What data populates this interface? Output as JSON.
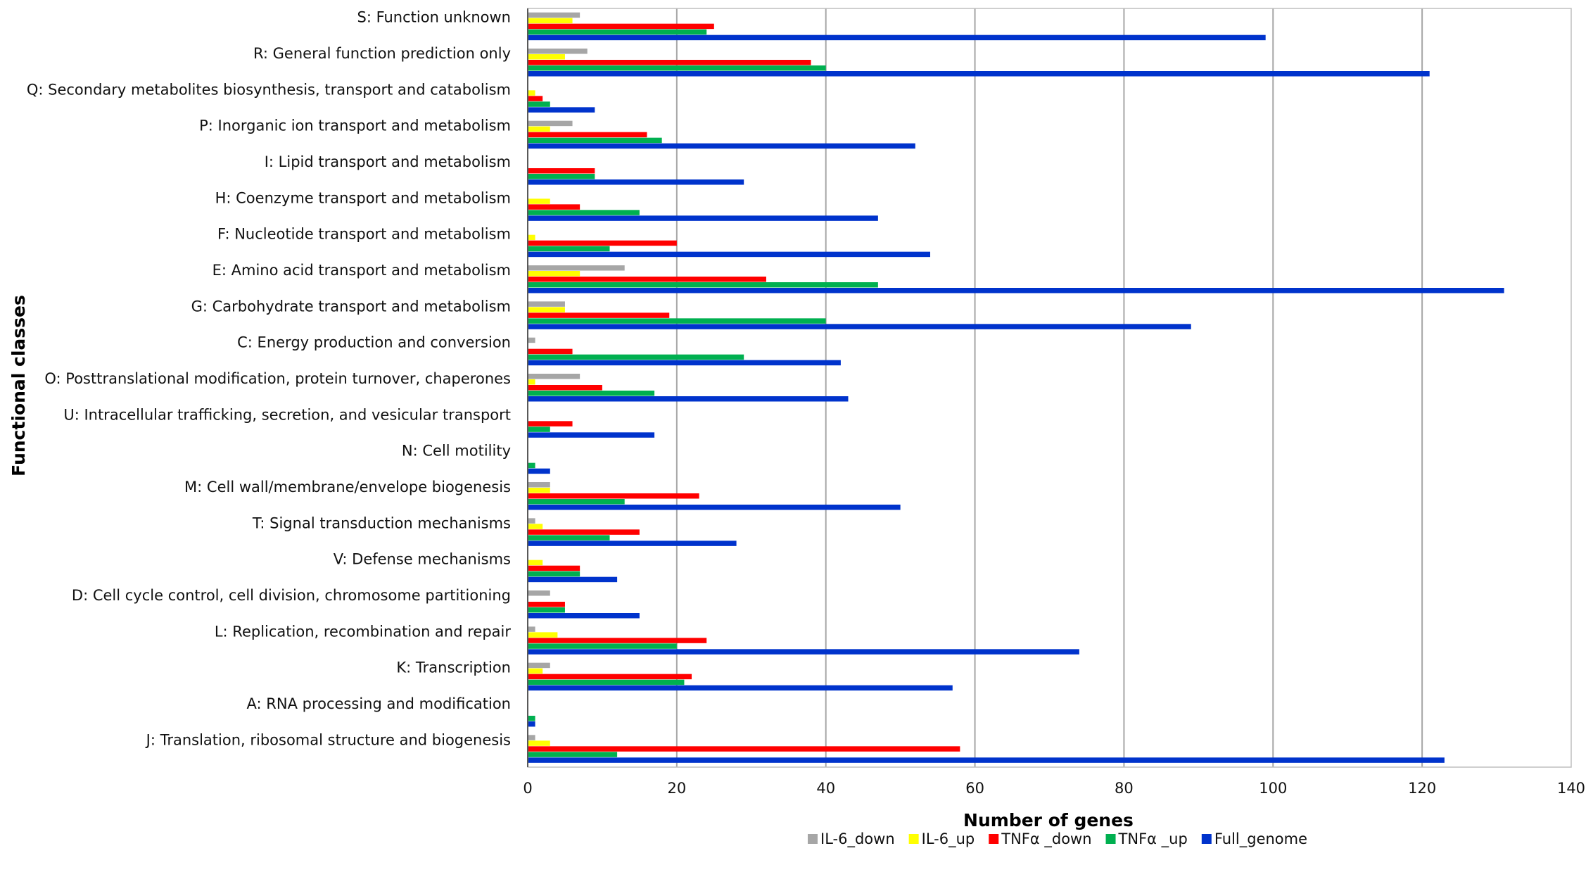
{
  "chart_data": {
    "type": "bar",
    "orientation": "horizontal",
    "title": "",
    "xlabel": "Number of genes",
    "ylabel": "Functional classes",
    "xlim": [
      0,
      140
    ],
    "xticks": [
      0,
      20,
      40,
      60,
      80,
      100,
      120,
      140
    ],
    "grid": true,
    "legend_position": "bottom",
    "categories": [
      "S: Function unknown",
      "R: General function prediction only",
      "Q: Secondary metabolites biosynthesis, transport and catabolism",
      "P: Inorganic ion transport and metabolism",
      "I: Lipid transport and metabolism",
      "H: Coenzyme transport and metabolism",
      "F: Nucleotide transport and metabolism",
      "E: Amino acid transport and metabolism",
      "G: Carbohydrate transport and metabolism",
      "C: Energy production and conversion",
      "O: Posttranslational modification, protein turnover, chaperones",
      "U: Intracellular trafficking, secretion, and vesicular transport",
      "N: Cell motility",
      "M: Cell wall/membrane/envelope biogenesis",
      "T: Signal transduction mechanisms",
      "V: Defense mechanisms",
      "D: Cell cycle control, cell division, chromosome partitioning",
      "L: Replication, recombination and repair",
      "K: Transcription",
      "A: RNA processing and modification",
      "J: Translation, ribosomal structure and biogenesis"
    ],
    "series": [
      {
        "name": "IL-6_down",
        "color": "#a6a6a6",
        "values": [
          7,
          8,
          0,
          6,
          0,
          0,
          0,
          13,
          5,
          1,
          7,
          0,
          0,
          3,
          1,
          0,
          3,
          1,
          3,
          0,
          1
        ]
      },
      {
        "name": "IL-6_up",
        "color": "#ffff00",
        "values": [
          6,
          5,
          1,
          3,
          0,
          3,
          1,
          7,
          5,
          0,
          1,
          0,
          0,
          3,
          2,
          2,
          0,
          4,
          2,
          0,
          3
        ]
      },
      {
        "name": "TNFα _down",
        "color": "#ff0000",
        "values": [
          25,
          38,
          2,
          16,
          9,
          7,
          20,
          32,
          19,
          6,
          10,
          6,
          0,
          23,
          15,
          7,
          5,
          24,
          22,
          0,
          58
        ]
      },
      {
        "name": "TNFα _up",
        "color": "#00b050",
        "values": [
          24,
          40,
          3,
          18,
          9,
          15,
          11,
          47,
          40,
          29,
          17,
          3,
          1,
          13,
          11,
          7,
          5,
          20,
          21,
          1,
          12
        ]
      },
      {
        "name": "Full_genome",
        "color": "#0033cc",
        "values": [
          99,
          121,
          9,
          52,
          29,
          47,
          54,
          131,
          89,
          42,
          43,
          17,
          3,
          50,
          28,
          12,
          15,
          74,
          57,
          1,
          123
        ]
      }
    ]
  }
}
